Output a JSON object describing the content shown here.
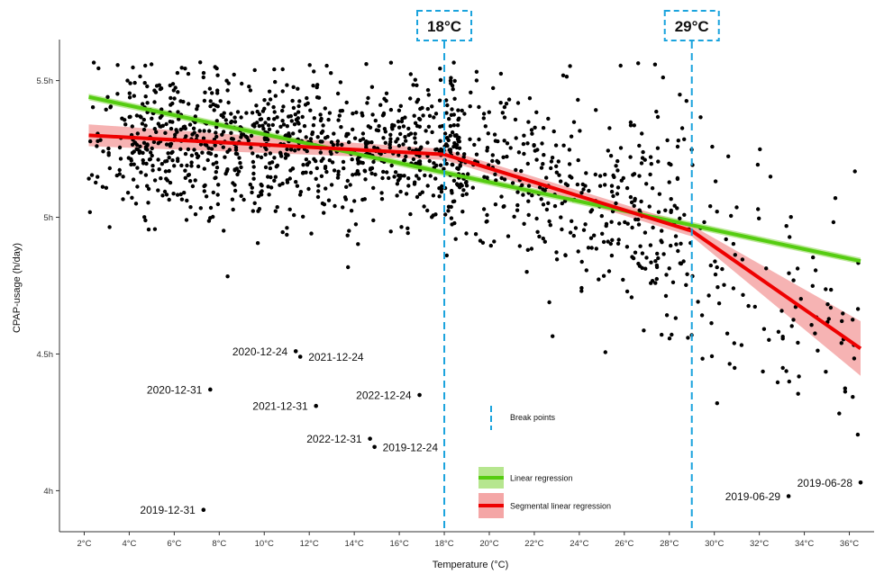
{
  "chart_data": {
    "type": "scatter",
    "title": "",
    "xlabel": "Temperature (°C)",
    "ylabel": "CPAP-usage (h/day)",
    "xlim": [
      0.9,
      37.1
    ],
    "ylim": [
      3.85,
      5.65
    ],
    "x_ticks": [
      2,
      4,
      6,
      8,
      10,
      12,
      14,
      16,
      18,
      20,
      22,
      24,
      26,
      28,
      30,
      32,
      34,
      36
    ],
    "x_tick_labels": [
      "2°C",
      "4°C",
      "6°C",
      "8°C",
      "10°C",
      "12°C",
      "14°C",
      "16°C",
      "18°C",
      "20°C",
      "22°C",
      "24°C",
      "26°C",
      "28°C",
      "30°C",
      "32°C",
      "34°C",
      "36°C"
    ],
    "y_ticks": [
      4,
      4.5,
      5,
      5.5
    ],
    "y_tick_labels": [
      "4h",
      "4.5h",
      "5h",
      "5.5h"
    ],
    "grid": false,
    "breakpoints": [
      {
        "x": 18,
        "label": "18°C"
      },
      {
        "x": 29,
        "label": "29°C"
      }
    ],
    "series": [
      {
        "name": "Linear regression",
        "kind": "line",
        "color": "#55cc11",
        "band_color": "#b6e68f",
        "x": [
          2.2,
          36.5
        ],
        "y": [
          5.44,
          4.84
        ],
        "band_half_width": 0.012
      },
      {
        "name": "Segmental linear regression",
        "kind": "line",
        "color": "#ee0000",
        "band_color": "#f4a6a6",
        "x": [
          2.2,
          18,
          29,
          36.5
        ],
        "y": [
          5.3,
          5.23,
          4.95,
          4.52
        ],
        "band_upper": [
          5.34,
          5.25,
          4.97,
          4.62
        ],
        "band_lower": [
          5.26,
          5.21,
          4.93,
          4.42
        ]
      }
    ],
    "legend": {
      "position": "bottom-center",
      "items": [
        "Break points",
        "Linear regression",
        "Segmental linear regression"
      ]
    },
    "annotated_points": [
      {
        "label": "2020-12-24",
        "x": 11.4,
        "y": 4.51
      },
      {
        "label": "2021-12-24",
        "x": 11.6,
        "y": 4.49
      },
      {
        "label": "2020-12-31",
        "x": 7.6,
        "y": 4.37
      },
      {
        "label": "2022-12-24",
        "x": 16.9,
        "y": 4.35
      },
      {
        "label": "2021-12-31",
        "x": 12.3,
        "y": 4.31
      },
      {
        "label": "2022-12-31",
        "x": 14.7,
        "y": 4.19
      },
      {
        "label": "2019-12-24",
        "x": 14.9,
        "y": 4.16
      },
      {
        "label": "2019-12-31",
        "x": 7.3,
        "y": 3.93
      },
      {
        "label": "2019-06-28",
        "x": 36.5,
        "y": 4.03
      },
      {
        "label": "2019-06-29",
        "x": 33.3,
        "y": 3.98
      }
    ],
    "scatter_points_note": "approximately 1,450 daily observations (black dots), densest between 6–18°C at 5.0–5.4h, spreading downward above 26°C"
  }
}
